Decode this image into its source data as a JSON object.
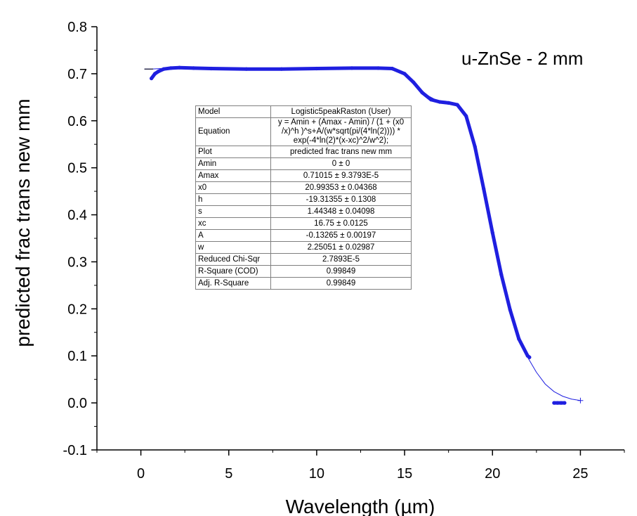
{
  "chart_data": {
    "type": "scatter",
    "title": "",
    "annotation": "u-ZnSe - 2 mm",
    "xlabel": "Wavelength (µm)",
    "ylabel": "predicted frac trans new mm",
    "xlim": [
      -2.5,
      27.5
    ],
    "ylim": [
      -0.1,
      0.8
    ],
    "x_ticks": [
      0,
      5,
      10,
      15,
      20,
      25
    ],
    "x_tick_labels": [
      "0",
      "5",
      "10",
      "15",
      "20",
      "25"
    ],
    "y_ticks": [
      -0.1,
      0.0,
      0.1,
      0.2,
      0.3,
      0.4,
      0.5,
      0.6,
      0.7,
      0.8
    ],
    "y_tick_labels": [
      "-0.1",
      "0.0",
      "0.1",
      "0.2",
      "0.3",
      "0.4",
      "0.5",
      "0.6",
      "0.7",
      "0.8"
    ],
    "grid": false,
    "series": [
      {
        "color": "#1f1fe0",
        "x": [
          0.6,
          0.8,
          1.0,
          1.3,
          1.7,
          2.2,
          3.0,
          4.0,
          6.0,
          8.0,
          10.0,
          12.0,
          13.5,
          14.3,
          15.0,
          15.5,
          16.0,
          16.5,
          17.0,
          17.5,
          18.0,
          18.5,
          19.0,
          19.5,
          20.0,
          20.5,
          21.0,
          21.5,
          22.0,
          22.1
        ],
        "y": [
          0.69,
          0.7,
          0.705,
          0.71,
          0.712,
          0.713,
          0.712,
          0.711,
          0.71,
          0.71,
          0.711,
          0.712,
          0.712,
          0.711,
          0.7,
          0.682,
          0.66,
          0.645,
          0.64,
          0.638,
          0.634,
          0.61,
          0.545,
          0.455,
          0.362,
          0.273,
          0.198,
          0.136,
          0.1,
          0.097
        ]
      },
      {
        "color": "#1f1fe0",
        "x": [
          23.5,
          23.7,
          23.9,
          24.1
        ],
        "y": [
          0.0,
          0.0,
          0.0,
          0.0
        ]
      }
    ],
    "fit_curve": {
      "color": "#1f1fe0",
      "x": [
        0.2,
        0.6,
        2.0,
        5.0,
        10.0,
        14.0,
        15.0,
        16.0,
        17.0,
        18.0,
        18.5,
        19.0,
        19.5,
        20.0,
        20.5,
        21.0,
        21.5,
        22.0,
        22.5,
        23.0,
        23.5,
        24.0,
        24.5,
        25.0
      ],
      "y": [
        0.71,
        0.71,
        0.713,
        0.711,
        0.711,
        0.711,
        0.7,
        0.66,
        0.64,
        0.634,
        0.61,
        0.545,
        0.455,
        0.362,
        0.273,
        0.198,
        0.136,
        0.097,
        0.065,
        0.04,
        0.024,
        0.014,
        0.008,
        0.005
      ]
    }
  },
  "fit_table": [
    {
      "key": "Model",
      "value": "Logistic5peakRaston (User)"
    },
    {
      "key": "Equation",
      "value": "y = Amin + (Amax - Amin) / (1 + (x0 /x)^h )^s+A/(w*sqrt(pi/(4*ln(2)))) * exp(-4*ln(2)*(x-xc)^2/w^2);"
    },
    {
      "key": "Plot",
      "value": "predicted frac trans new mm"
    },
    {
      "key": "Amin",
      "value": "0 ± 0"
    },
    {
      "key": "Amax",
      "value": "0.71015 ± 9.3793E-5"
    },
    {
      "key": "x0",
      "value": "20.99353 ± 0.04368"
    },
    {
      "key": "h",
      "value": "-19.31355 ± 0.1308"
    },
    {
      "key": "s",
      "value": "1.44348 ± 0.04098"
    },
    {
      "key": "xc",
      "value": "16.75 ± 0.0125"
    },
    {
      "key": "A",
      "value": "-0.13265 ± 0.00197"
    },
    {
      "key": "w",
      "value": "2.25051 ± 0.02987"
    },
    {
      "key": "Reduced Chi-Sqr",
      "value": "2.7893E-5"
    },
    {
      "key": "R-Square (COD)",
      "value": "0.99849"
    },
    {
      "key": "Adj. R-Square",
      "value": "0.99849"
    }
  ]
}
